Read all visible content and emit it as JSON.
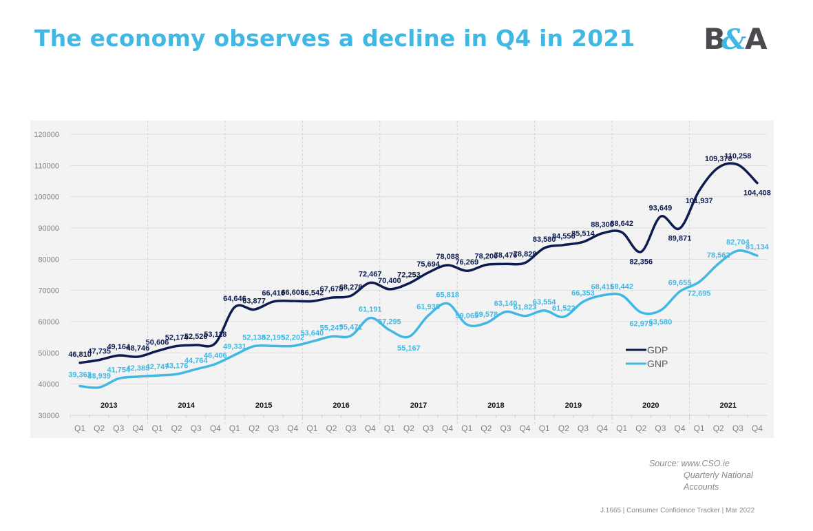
{
  "page": {
    "title": "The economy observes a decline in Q4 in 2021",
    "logo_text": "B&A",
    "source_line1": "Source: www.CSO.ie",
    "source_line2": "Quarterly National",
    "source_line3": "Accounts",
    "footer": "J.1665  | Consumer Confidence Tracker |  Mar 2022"
  },
  "colors": {
    "title": "#41b8e4",
    "gdp": "#0d1b4f",
    "gnp": "#41b8e4",
    "plot_bg": "#f3f3f3",
    "logo_dark": "#4b4b4f",
    "logo_accent": "#41b8e4"
  },
  "chart_data": {
    "type": "line",
    "title": "The economy observes a decline in Q4 in 2021",
    "xlabel": "",
    "ylabel": "",
    "ylim": [
      30000,
      120000
    ],
    "yticks": [
      30000,
      40000,
      50000,
      60000,
      70000,
      80000,
      90000,
      100000,
      110000,
      120000
    ],
    "grid": true,
    "legend": "center-right",
    "years": [
      "2013",
      "2014",
      "2015",
      "2016",
      "2017",
      "2018",
      "2019",
      "2020",
      "2021"
    ],
    "quarters": [
      "Q1",
      "Q2",
      "Q3",
      "Q4"
    ],
    "series": [
      {
        "name": "GDP",
        "values": [
          46810,
          47735,
          49164,
          48746,
          50606,
          52174,
          52526,
          53118,
          64646,
          63877,
          66416,
          66603,
          66542,
          67678,
          68278,
          72467,
          70400,
          72253,
          75694,
          78088,
          76269,
          78200,
          78476,
          78828,
          83580,
          84556,
          85514,
          88300,
          88642,
          82356,
          93649,
          89871,
          101937,
          109378,
          110258,
          104408
        ],
        "labels": [
          "46,810",
          "47,735",
          "49,164",
          "48,746",
          "50,606",
          "52,174",
          "52,526",
          "53,118",
          "64,646",
          "63,877",
          "66,416",
          "66,603",
          "66,542",
          "67,678",
          "68,278",
          "72,467",
          "70,400",
          "72,253",
          "75,694",
          "78,088",
          "76,269",
          "78,200",
          "78,476",
          "78,828",
          "83,580",
          "84,556",
          "85,514",
          "88,300",
          "88,642",
          "82,356",
          "93,649",
          "89,871",
          "101,937",
          "109,378",
          "110,258",
          "104,408"
        ]
      },
      {
        "name": "GNP",
        "values": [
          39362,
          38939,
          41754,
          42383,
          42747,
          43176,
          44764,
          46406,
          49331,
          52138,
          52195,
          52202,
          53640,
          55247,
          55471,
          61191,
          57295,
          55167,
          61935,
          65818,
          59065,
          59578,
          63140,
          61823,
          63554,
          61522,
          66353,
          68411,
          68442,
          62973,
          63580,
          69655,
          72695,
          78562,
          82704,
          81134
        ],
        "labels": [
          "39,362",
          "38,939",
          "41,754",
          "42,383",
          "42,747",
          "43,176",
          "44,764",
          "46,406",
          "49,331",
          "52,138",
          "52,195",
          "52,202",
          "53,640",
          "55,247",
          "55,471",
          "61,191",
          "57,295",
          "55,167",
          "61,935",
          "65,818",
          "59,065",
          "59,578",
          "63,140",
          "61,823",
          "63,554",
          "61,522",
          "66,353",
          "68,411",
          "68,442",
          "62,973",
          "63,580",
          "69,655",
          "72,695",
          "78,562",
          "82,704",
          "81,134"
        ]
      }
    ]
  }
}
